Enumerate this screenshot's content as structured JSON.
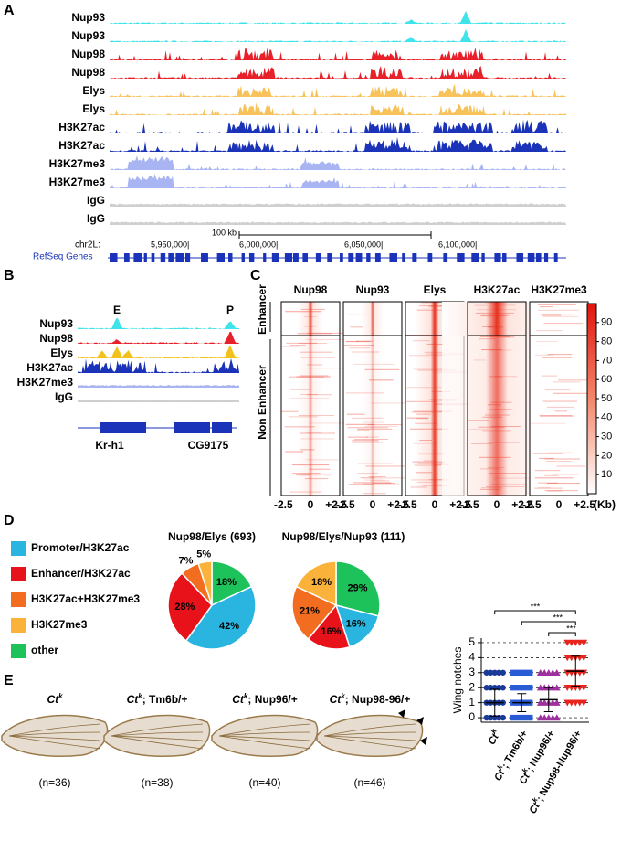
{
  "panel_labels": [
    "A",
    "B",
    "C",
    "D",
    "E"
  ],
  "panel_a": {
    "tracks": [
      {
        "name": "Nup93",
        "color": "#3fe3ea"
      },
      {
        "name": "Nup93",
        "color": "#3fe3ea"
      },
      {
        "name": "Nup98",
        "color": "#e8202a"
      },
      {
        "name": "Nup98",
        "color": "#e8202a"
      },
      {
        "name": "Elys",
        "color": "#f7c25a"
      },
      {
        "name": "Elys",
        "color": "#f7c25a"
      },
      {
        "name": "H3K27ac",
        "color": "#1a33b8"
      },
      {
        "name": "H3K27ac",
        "color": "#1a33b8"
      },
      {
        "name": "H3K27me3",
        "color": "#a9b5f2"
      },
      {
        "name": "H3K27me3",
        "color": "#a9b5f2"
      },
      {
        "name": "IgG",
        "color": "#cfcfcf"
      },
      {
        "name": "IgG",
        "color": "#cfcfcf"
      }
    ],
    "scale_label": "100 kb",
    "chrom": "chr2L:",
    "positions": [
      "5,950,000|",
      "6,000,000|",
      "6,050,000|",
      "6,100,000|"
    ],
    "genes_label": "RefSeq Genes"
  },
  "panel_b": {
    "peak_labels": [
      "E",
      "P"
    ],
    "tracks": [
      {
        "name": "Nup93",
        "color": "#3fe3ea"
      },
      {
        "name": "Nup98",
        "color": "#e8202a"
      },
      {
        "name": "Elys",
        "color": "#f2c21a"
      },
      {
        "name": "H3K27ac",
        "color": "#1a33b8"
      },
      {
        "name": "H3K27me3",
        "color": "#a9b5f2"
      },
      {
        "name": "IgG",
        "color": "#cfcfcf"
      }
    ],
    "genes": [
      "Kr-h1",
      "CG9175"
    ]
  },
  "panel_c": {
    "columns": [
      "Nup98",
      "Nup93",
      "Elys",
      "H3K27ac",
      "H3K27me3"
    ],
    "row_groups": [
      "Enhancer",
      "Non Enhancer"
    ],
    "x_labels": [
      "-2.5",
      "0",
      "+2.5"
    ],
    "x_unit": "(Kb)",
    "colorbar_lim": [
      0,
      100
    ],
    "colorbar_ticks": [
      10,
      20,
      30,
      40,
      50,
      60,
      70,
      80,
      90
    ]
  },
  "panel_d": {
    "legend": [
      {
        "name": "Promoter/H3K27ac",
        "color": "#29b5e0"
      },
      {
        "name": "Enhancer/H3K27ac",
        "color": "#e8121a"
      },
      {
        "name": "H3K27ac+H3K27me3",
        "color": "#f26d1f"
      },
      {
        "name": "H3K27me3",
        "color": "#fbb23a"
      },
      {
        "name": "other",
        "color": "#1ec25a"
      }
    ],
    "pies": [
      {
        "title": "Nup98/Elys (693)",
        "values": [
          42,
          28,
          7,
          5,
          18
        ],
        "value_labels": [
          "42%",
          "28%",
          "7%",
          "5%",
          "18%"
        ]
      },
      {
        "title": "Nup98/Elys/Nup93 (111)",
        "values": [
          16,
          16,
          21,
          18,
          29
        ],
        "value_labels": [
          "16%",
          "16%",
          "21%",
          "18%",
          "29%"
        ]
      }
    ]
  },
  "panel_e": {
    "genotypes": [
      {
        "base": "Ct",
        "sup": "k",
        "rest": ""
      },
      {
        "base": "Ct",
        "sup": "k",
        "rest": "; Tm6b/+"
      },
      {
        "base": "Ct",
        "sup": "k",
        "rest": "; Nup96/+"
      },
      {
        "base": "Ct",
        "sup": "k",
        "rest": "; Nup98-96/+"
      }
    ],
    "n_labels": [
      "(n=36)",
      "(n=38)",
      "(n=40)",
      "(n=46)"
    ],
    "chart": {
      "type": "dot",
      "ylabel": "Wing notches",
      "ylim": [
        -0.3,
        5.3
      ],
      "yticks": [
        0,
        1,
        2,
        3,
        4,
        5
      ],
      "grid": "dashed",
      "categories": [
        {
          "base": "Ct",
          "sup": "k",
          "rest": ""
        },
        {
          "base": "Ct",
          "sup": "k",
          "rest": "; Tm6b/+"
        },
        {
          "base": "Ct",
          "sup": "k",
          "rest": "; Nup96/+"
        },
        {
          "base": "Ct",
          "sup": "k",
          "rest": "; Nup98-Nup96/+"
        }
      ],
      "series": [
        {
          "color": "#1a3a9a",
          "marker": "circle",
          "levels": [
            0,
            1,
            2,
            3
          ],
          "mean": 1.0,
          "sd": 0.9
        },
        {
          "color": "#2a5bd7",
          "marker": "square",
          "levels": [
            0,
            1,
            2,
            3
          ],
          "mean": 1.0,
          "sd": 0.6
        },
        {
          "color": "#a030a0",
          "marker": "triangle",
          "levels": [
            0,
            1,
            2,
            3
          ],
          "mean": 1.2,
          "sd": 0.8
        },
        {
          "color": "#e8241c",
          "marker": "down",
          "levels": [
            1,
            2,
            3,
            4,
            5
          ],
          "mean": 3.1,
          "sd": 1.0
        }
      ],
      "significance": [
        {
          "from": 0,
          "to": 3,
          "label": "***"
        },
        {
          "from": 1,
          "to": 3,
          "label": "***"
        },
        {
          "from": 2,
          "to": 3,
          "label": "***"
        }
      ]
    }
  }
}
